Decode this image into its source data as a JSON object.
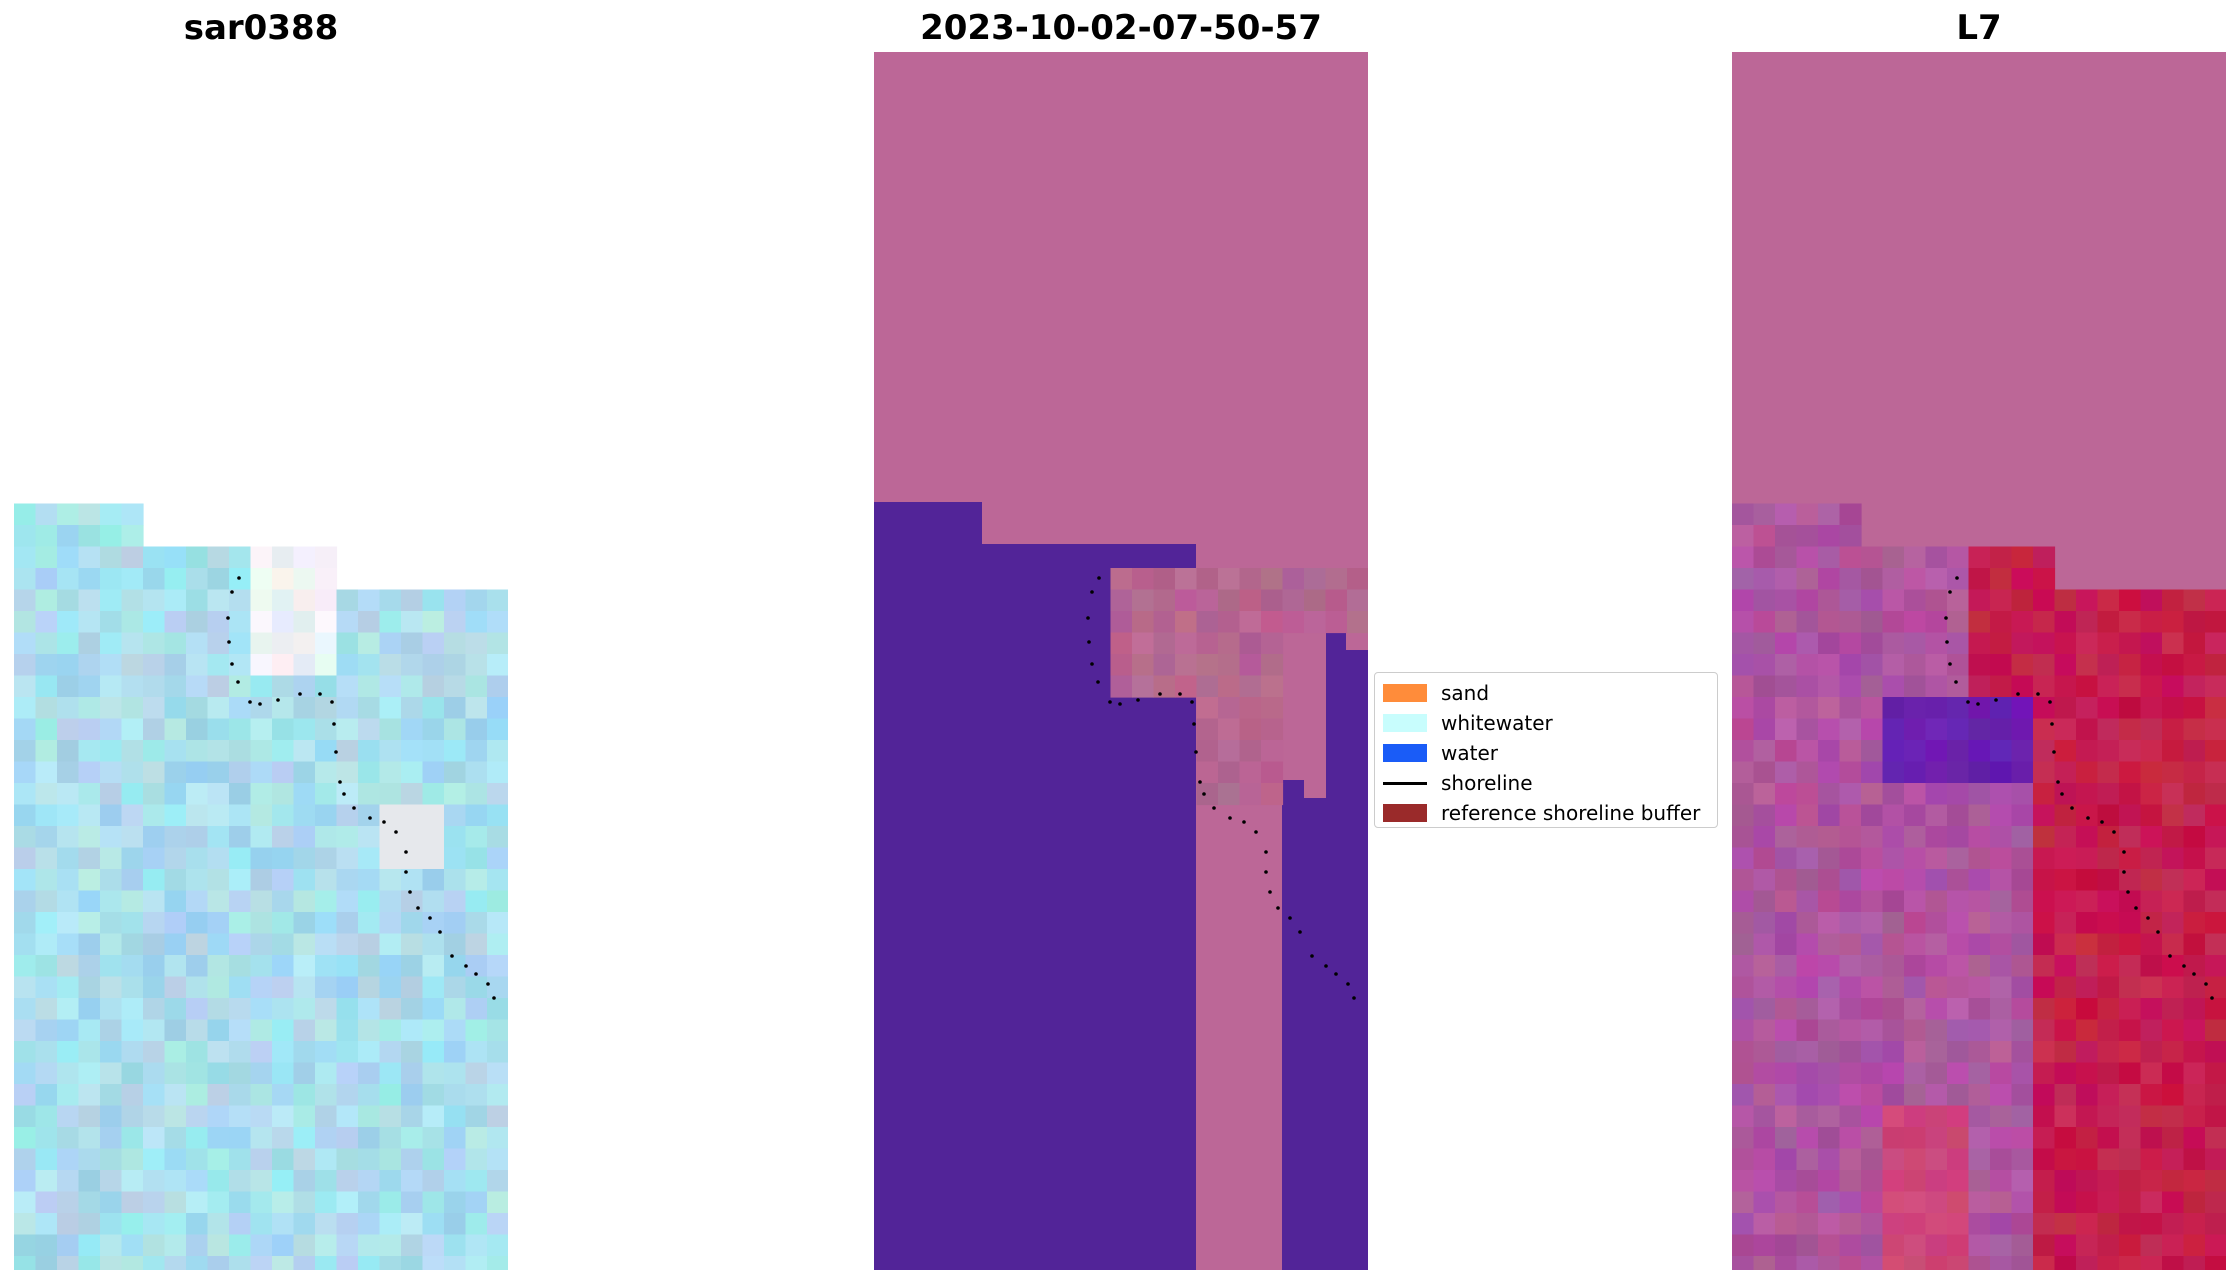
{
  "panels": {
    "left": {
      "title": "sar0388"
    },
    "middle": {
      "title": "2023-10-02-07-50-57"
    },
    "right": {
      "title": "L7"
    }
  },
  "legend": {
    "items": [
      {
        "label": "sand",
        "color": "#ff8c3a",
        "kind": "patch"
      },
      {
        "label": "whitewater",
        "color": "#c8fdfd",
        "kind": "patch"
      },
      {
        "label": "water",
        "color": "#1a5cf7",
        "kind": "patch"
      },
      {
        "label": "shoreline",
        "color": "#000000",
        "kind": "line"
      },
      {
        "label": "reference shoreline buffer",
        "color": "#9a2a2a",
        "kind": "patch"
      }
    ]
  },
  "colors": {
    "masked_overlay": "#bc6797",
    "water_class": "#522498",
    "rgb_base": "#9fd3e6",
    "index_base": "#a6559c",
    "index_high": "#c8063a",
    "index_low": "#5a0ba8"
  }
}
